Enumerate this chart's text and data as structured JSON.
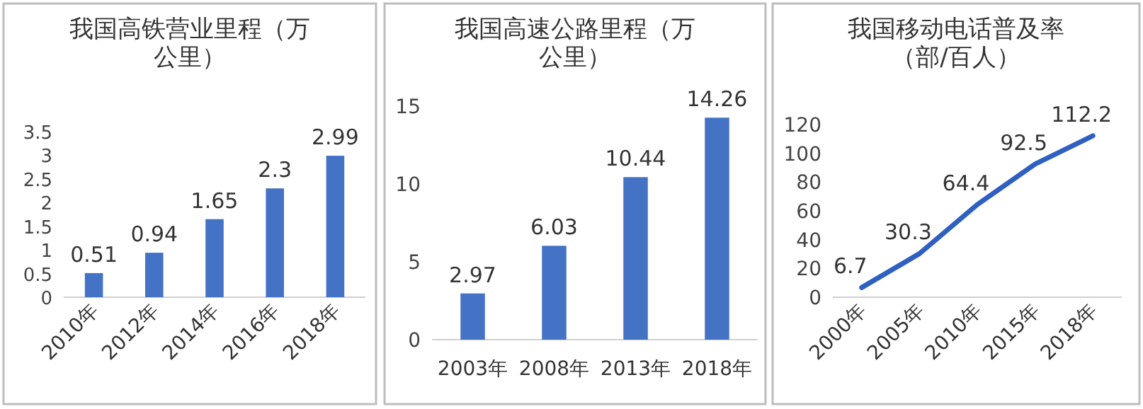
{
  "chart_data": [
    {
      "type": "bar",
      "title": "我国高铁营业里程（万公里）",
      "categories": [
        "2010年",
        "2012年",
        "2014年",
        "2016年",
        "2018年"
      ],
      "values": [
        0.51,
        0.94,
        1.65,
        2.3,
        2.99
      ],
      "color": "#4472c4",
      "ylim": [
        0,
        3.5
      ],
      "yticks": [
        0,
        0.5,
        1,
        1.5,
        2,
        2.5,
        3,
        3.5
      ],
      "data_labels": true,
      "grid": false
    },
    {
      "type": "bar",
      "title": "我国高速公路里程（万公里）",
      "categories": [
        "2003年",
        "2008年",
        "2013年",
        "2018年"
      ],
      "values": [
        2.97,
        6.03,
        10.44,
        14.26
      ],
      "color": "#4472c4",
      "ylim": [
        0,
        15
      ],
      "yticks": [
        0,
        5,
        10,
        15
      ],
      "data_labels": true,
      "grid": false
    },
    {
      "type": "line",
      "title": "我国移动电话普及率（部/百人）",
      "categories": [
        "2000年",
        "2005年",
        "2010年",
        "2015年",
        "2018年"
      ],
      "values": [
        6.7,
        30.3,
        64.4,
        92.5,
        112.2
      ],
      "color": "#2f5fc0",
      "ylim": [
        0,
        120
      ],
      "yticks": [
        0,
        20,
        40,
        60,
        80,
        100,
        120
      ],
      "data_labels": true,
      "grid": false,
      "marker": "none"
    }
  ]
}
